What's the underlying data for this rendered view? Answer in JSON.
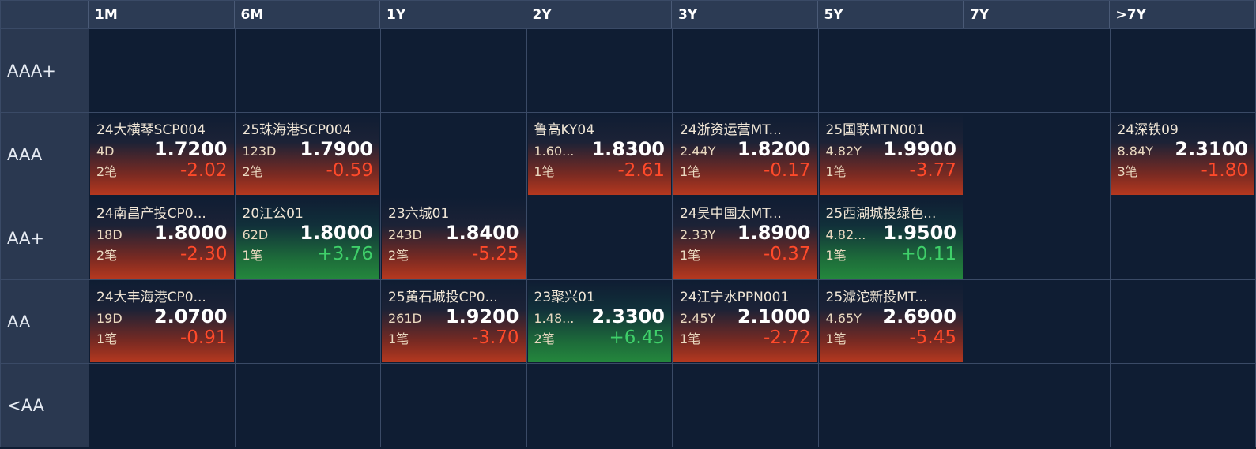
{
  "columns": [
    "1M",
    "6M",
    "1Y",
    "2Y",
    "3Y",
    "5Y",
    "7Y",
    ">7Y"
  ],
  "rows": [
    {
      "label": "AAA+",
      "cells": [
        null,
        null,
        null,
        null,
        null,
        null,
        null,
        null
      ]
    },
    {
      "label": "AAA",
      "cells": [
        {
          "name": "24大横琴SCP004",
          "term": "4D",
          "yield": "1.7200",
          "count": "2笔",
          "change": "-2.02"
        },
        {
          "name": "25珠海港SCP004",
          "term": "123D",
          "yield": "1.7900",
          "count": "2笔",
          "change": "-0.59"
        },
        null,
        {
          "name": "鲁高KY04",
          "term": "1.60...",
          "yield": "1.8300",
          "count": "1笔",
          "change": "-2.61"
        },
        {
          "name": "24浙资运营MT...",
          "term": "2.44Y",
          "yield": "1.8200",
          "count": "1笔",
          "change": "-0.17"
        },
        {
          "name": "25国联MTN001",
          "term": "4.82Y",
          "yield": "1.9900",
          "count": "1笔",
          "change": "-3.77"
        },
        null,
        {
          "name": "24深铁09",
          "term": "8.84Y",
          "yield": "2.3100",
          "count": "3笔",
          "change": "-1.80"
        }
      ]
    },
    {
      "label": "AA+",
      "cells": [
        {
          "name": "24南昌产投CP0...",
          "term": "18D",
          "yield": "1.8000",
          "count": "2笔",
          "change": "-2.30"
        },
        {
          "name": "20江公01",
          "term": "62D",
          "yield": "1.8000",
          "count": "1笔",
          "change": "+3.76"
        },
        {
          "name": "23六城01",
          "term": "243D",
          "yield": "1.8400",
          "count": "2笔",
          "change": "-5.25"
        },
        null,
        {
          "name": "24吴中国太MT...",
          "term": "2.33Y",
          "yield": "1.8900",
          "count": "1笔",
          "change": "-0.37"
        },
        {
          "name": "25西湖城投绿色...",
          "term": "4.82...",
          "yield": "1.9500",
          "count": "1笔",
          "change": "+0.11"
        },
        null,
        null
      ]
    },
    {
      "label": "AA",
      "cells": [
        {
          "name": "24大丰海港CP0...",
          "term": "19D",
          "yield": "2.0700",
          "count": "1笔",
          "change": "-0.91"
        },
        null,
        {
          "name": "25黄石城投CP0...",
          "term": "261D",
          "yield": "1.9200",
          "count": "1笔",
          "change": "-3.70"
        },
        {
          "name": "23聚兴01",
          "term": "1.48...",
          "yield": "2.3300",
          "count": "2笔",
          "change": "+6.45"
        },
        {
          "name": "24江宁水PPN001",
          "term": "2.45Y",
          "yield": "2.1000",
          "count": "1笔",
          "change": "-2.72"
        },
        {
          "name": "25滹沱新投MT...",
          "term": "4.65Y",
          "yield": "2.6900",
          "count": "1笔",
          "change": "-5.45"
        },
        null,
        null
      ]
    },
    {
      "label": "<AA",
      "cells": [
        null,
        null,
        null,
        null,
        null,
        null,
        null,
        null
      ]
    }
  ]
}
